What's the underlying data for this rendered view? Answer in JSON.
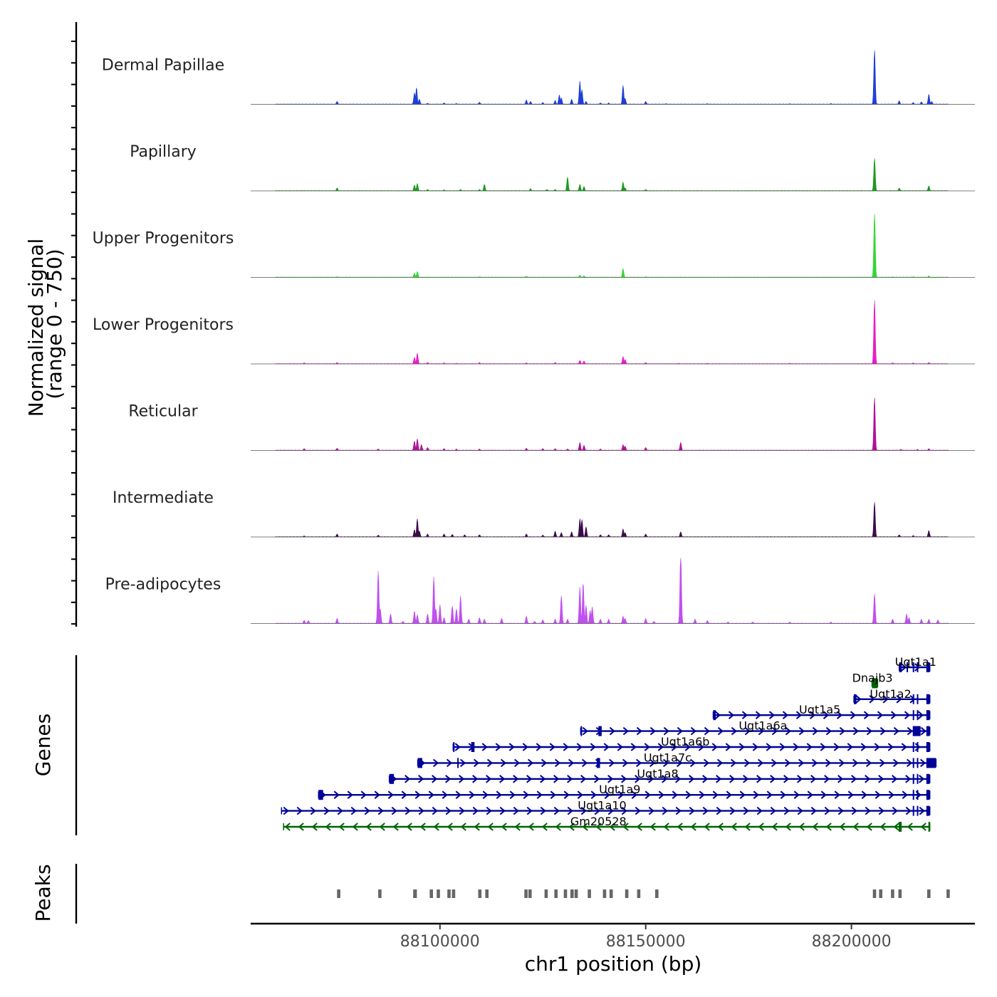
{
  "chart_data": {
    "type": "area",
    "title": "",
    "chromosome": "chr1",
    "xlabel": "chr1 position (bp)",
    "ylabel_line1": "Normalized signal",
    "ylabel_line2": "(range 0 - 750)",
    "y_range": [
      0,
      750
    ],
    "xlim": [
      88054000,
      88230000
    ],
    "x_ticks": [
      88100000,
      88150000,
      88200000
    ],
    "x_tick_labels": [
      "88100000",
      "88150000",
      "88200000"
    ],
    "panel_labels": {
      "genes": "Genes",
      "peaks": "Peaks"
    },
    "tracks": [
      {
        "name": "Dermal Papillae",
        "color": "#1f3fd6",
        "peaks": [
          [
            88075000,
            40
          ],
          [
            88093800,
            160
          ],
          [
            88094300,
            230
          ],
          [
            88095000,
            70
          ],
          [
            88097000,
            15
          ],
          [
            88101000,
            20
          ],
          [
            88104000,
            12
          ],
          [
            88109600,
            30
          ],
          [
            88121000,
            60
          ],
          [
            88122000,
            40
          ],
          [
            88125000,
            25
          ],
          [
            88128000,
            55
          ],
          [
            88129000,
            130
          ],
          [
            88129500,
            90
          ],
          [
            88132000,
            70
          ],
          [
            88134000,
            320
          ],
          [
            88134500,
            200
          ],
          [
            88135500,
            40
          ],
          [
            88139000,
            20
          ],
          [
            88141000,
            20
          ],
          [
            88144500,
            260
          ],
          [
            88145000,
            80
          ],
          [
            88150000,
            40
          ],
          [
            88155000,
            10
          ],
          [
            88165000,
            10
          ],
          [
            88185000,
            10
          ],
          [
            88195000,
            12
          ],
          [
            88205600,
            750
          ],
          [
            88211600,
            50
          ],
          [
            88215000,
            25
          ],
          [
            88217000,
            35
          ],
          [
            88218800,
            140
          ],
          [
            88219500,
            40
          ]
        ]
      },
      {
        "name": "Papillary",
        "color": "#1a9a1a",
        "peaks": [
          [
            88075000,
            40
          ],
          [
            88093800,
            80
          ],
          [
            88094500,
            100
          ],
          [
            88097000,
            20
          ],
          [
            88101000,
            15
          ],
          [
            88105000,
            20
          ],
          [
            88109600,
            20
          ],
          [
            88110800,
            90
          ],
          [
            88122000,
            30
          ],
          [
            88126000,
            20
          ],
          [
            88128000,
            20
          ],
          [
            88131000,
            190
          ],
          [
            88134000,
            90
          ],
          [
            88135000,
            60
          ],
          [
            88144500,
            120
          ],
          [
            88145000,
            40
          ],
          [
            88150000,
            20
          ],
          [
            88205600,
            450
          ],
          [
            88211600,
            40
          ],
          [
            88218800,
            70
          ]
        ]
      },
      {
        "name": "Upper Progenitors",
        "color": "#33d633",
        "peaks": [
          [
            88075000,
            10
          ],
          [
            88093800,
            60
          ],
          [
            88094500,
            80
          ],
          [
            88109600,
            10
          ],
          [
            88121000,
            15
          ],
          [
            88134000,
            30
          ],
          [
            88135000,
            20
          ],
          [
            88144500,
            120
          ],
          [
            88150000,
            10
          ],
          [
            88205600,
            880
          ],
          [
            88210000,
            10
          ],
          [
            88215000,
            10
          ],
          [
            88218800,
            20
          ]
        ]
      },
      {
        "name": "Lower Progenitors",
        "color": "#e61ec7",
        "peaks": [
          [
            88067000,
            15
          ],
          [
            88075000,
            20
          ],
          [
            88093800,
            90
          ],
          [
            88094500,
            150
          ],
          [
            88097000,
            20
          ],
          [
            88101000,
            15
          ],
          [
            88104000,
            10
          ],
          [
            88109600,
            20
          ],
          [
            88121000,
            15
          ],
          [
            88128000,
            20
          ],
          [
            88134000,
            50
          ],
          [
            88135000,
            40
          ],
          [
            88144500,
            100
          ],
          [
            88145000,
            60
          ],
          [
            88150000,
            20
          ],
          [
            88158000,
            10
          ],
          [
            88165000,
            10
          ],
          [
            88185000,
            10
          ],
          [
            88205600,
            880
          ],
          [
            88210000,
            15
          ],
          [
            88215000,
            15
          ],
          [
            88218800,
            20
          ]
        ]
      },
      {
        "name": "Reticular",
        "color": "#b0109b",
        "peaks": [
          [
            88067000,
            25
          ],
          [
            88075000,
            30
          ],
          [
            88085000,
            20
          ],
          [
            88093800,
            130
          ],
          [
            88094500,
            160
          ],
          [
            88095500,
            80
          ],
          [
            88097000,
            40
          ],
          [
            88101000,
            25
          ],
          [
            88104000,
            20
          ],
          [
            88109600,
            20
          ],
          [
            88121000,
            30
          ],
          [
            88125000,
            25
          ],
          [
            88128000,
            25
          ],
          [
            88131000,
            20
          ],
          [
            88134000,
            110
          ],
          [
            88135000,
            70
          ],
          [
            88139000,
            20
          ],
          [
            88144500,
            80
          ],
          [
            88145000,
            60
          ],
          [
            88150000,
            40
          ],
          [
            88158500,
            110
          ],
          [
            88205600,
            730
          ],
          [
            88212000,
            15
          ],
          [
            88216000,
            15
          ],
          [
            88218800,
            25
          ]
        ]
      },
      {
        "name": "Intermediate",
        "color": "#3d0a4a",
        "peaks": [
          [
            88067000,
            15
          ],
          [
            88075000,
            40
          ],
          [
            88085000,
            25
          ],
          [
            88093800,
            100
          ],
          [
            88094500,
            250
          ],
          [
            88095000,
            80
          ],
          [
            88097000,
            40
          ],
          [
            88101000,
            40
          ],
          [
            88103000,
            35
          ],
          [
            88106000,
            30
          ],
          [
            88109600,
            30
          ],
          [
            88121000,
            40
          ],
          [
            88125000,
            25
          ],
          [
            88128000,
            80
          ],
          [
            88129500,
            60
          ],
          [
            88132000,
            70
          ],
          [
            88134000,
            250
          ],
          [
            88134500,
            240
          ],
          [
            88135500,
            140
          ],
          [
            88139000,
            30
          ],
          [
            88141000,
            30
          ],
          [
            88144500,
            110
          ],
          [
            88145000,
            60
          ],
          [
            88150000,
            40
          ],
          [
            88158500,
            70
          ],
          [
            88205600,
            480
          ],
          [
            88211600,
            30
          ],
          [
            88215000,
            20
          ],
          [
            88218800,
            90
          ]
        ]
      },
      {
        "name": "Pre-adipocytes",
        "color": "#c04ff0",
        "peaks": [
          [
            88067000,
            45
          ],
          [
            88068000,
            40
          ],
          [
            88075000,
            70
          ],
          [
            88085000,
            720
          ],
          [
            88085500,
            200
          ],
          [
            88088000,
            130
          ],
          [
            88091000,
            30
          ],
          [
            88093800,
            170
          ],
          [
            88094500,
            120
          ],
          [
            88097000,
            130
          ],
          [
            88098500,
            640
          ],
          [
            88099000,
            200
          ],
          [
            88100000,
            260
          ],
          [
            88101000,
            80
          ],
          [
            88103000,
            240
          ],
          [
            88104000,
            200
          ],
          [
            88105000,
            380
          ],
          [
            88107000,
            60
          ],
          [
            88109600,
            80
          ],
          [
            88110800,
            60
          ],
          [
            88115000,
            70
          ],
          [
            88121000,
            100
          ],
          [
            88123000,
            30
          ],
          [
            88125000,
            50
          ],
          [
            88128000,
            60
          ],
          [
            88129500,
            380
          ],
          [
            88131000,
            60
          ],
          [
            88134000,
            500
          ],
          [
            88134800,
            560
          ],
          [
            88135500,
            250
          ],
          [
            88136500,
            180
          ],
          [
            88137000,
            230
          ],
          [
            88139000,
            60
          ],
          [
            88141000,
            60
          ],
          [
            88144500,
            100
          ],
          [
            88145000,
            70
          ],
          [
            88150000,
            70
          ],
          [
            88152000,
            30
          ],
          [
            88158500,
            1000
          ],
          [
            88162000,
            60
          ],
          [
            88165000,
            40
          ],
          [
            88170000,
            20
          ],
          [
            88176000,
            20
          ],
          [
            88185000,
            20
          ],
          [
            88195000,
            20
          ],
          [
            88205600,
            410
          ],
          [
            88210000,
            60
          ],
          [
            88213400,
            130
          ],
          [
            88214000,
            80
          ],
          [
            88217000,
            60
          ],
          [
            88218800,
            60
          ],
          [
            88221000,
            50
          ]
        ]
      }
    ],
    "genes": [
      {
        "name": "Ugt1a1",
        "start": 88211600,
        "end": 88219000,
        "strand": "+",
        "color": "#000099",
        "exons": [
          [
            88211600,
            88212200
          ],
          [
            88213400,
            88213700
          ],
          [
            88214900,
            88215200
          ],
          [
            88215900,
            88216200
          ],
          [
            88218200,
            88219000
          ]
        ],
        "label_pos": 88215600
      },
      {
        "name": "Dnajb3",
        "start": 88205000,
        "end": 88206300,
        "strand": "-",
        "color": "#006400",
        "exons": [
          [
            88205000,
            88206300
          ]
        ],
        "label_pos": 88205100
      },
      {
        "name": "Ugt1a2",
        "start": 88200600,
        "end": 88219000,
        "strand": "+",
        "color": "#000099",
        "exons": [
          [
            88200600,
            88201200
          ],
          [
            88214900,
            88215200
          ],
          [
            88215900,
            88216200
          ],
          [
            88218200,
            88219000
          ]
        ],
        "label_pos": 88209500
      },
      {
        "name": "Ugt1a5",
        "start": 88166400,
        "end": 88219000,
        "strand": "+",
        "color": "#000099",
        "exons": [
          [
            88166400,
            88167000
          ],
          [
            88214900,
            88215200
          ],
          [
            88215900,
            88216200
          ],
          [
            88218200,
            88219000
          ]
        ],
        "label_pos": 88192300
      },
      {
        "name": "Ugt1a6a",
        "start": 88134200,
        "end": 88219000,
        "strand": "+",
        "color": "#000099",
        "exons": [
          [
            88134200,
            88134500
          ],
          [
            88138500,
            88139300
          ],
          [
            88214900,
            88216800
          ],
          [
            88218200,
            88219000
          ]
        ],
        "label_pos": 88178500
      },
      {
        "name": "Ugt1a6b",
        "start": 88103200,
        "end": 88219000,
        "strand": "+",
        "color": "#000099",
        "exons": [
          [
            88103200,
            88103500
          ],
          [
            88107600,
            88108400
          ],
          [
            88214900,
            88215200
          ],
          [
            88215900,
            88216200
          ],
          [
            88218200,
            88219000
          ]
        ],
        "label_pos": 88159600
      },
      {
        "name": "Ugt1a7c",
        "start": 88094600,
        "end": 88220500,
        "strand": "+",
        "color": "#000099",
        "exons": [
          [
            88094600,
            88095700
          ],
          [
            88104200,
            88104500
          ],
          [
            88138100,
            88138900
          ],
          [
            88214900,
            88215200
          ],
          [
            88215900,
            88216200
          ],
          [
            88218200,
            88220500
          ]
        ],
        "label_pos": 88155300
      },
      {
        "name": "Ugt1a8",
        "start": 88087700,
        "end": 88219000,
        "strand": "+",
        "color": "#000099",
        "exons": [
          [
            88087700,
            88088800
          ],
          [
            88214900,
            88215200
          ],
          [
            88215900,
            88216200
          ],
          [
            88218200,
            88219000
          ]
        ],
        "label_pos": 88152900
      },
      {
        "name": "Ugt1a9",
        "start": 88070500,
        "end": 88219000,
        "strand": "+",
        "color": "#000099",
        "exons": [
          [
            88070500,
            88071600
          ],
          [
            88214900,
            88215200
          ],
          [
            88215900,
            88216200
          ],
          [
            88218200,
            88219000
          ]
        ],
        "label_pos": 88143700
      },
      {
        "name": "Ugt1a10",
        "start": 88061500,
        "end": 88219000,
        "strand": "+",
        "color": "#000099",
        "exons": [
          [
            88214900,
            88215200
          ],
          [
            88215900,
            88216200
          ],
          [
            88218200,
            88219000
          ]
        ],
        "label_pos": 88139400
      },
      {
        "name": "Gm20528",
        "start": 88062000,
        "end": 88219000,
        "strand": "-",
        "color": "#006400",
        "exons": [
          [
            88211500,
            88212200
          ],
          [
            88218700,
            88219000
          ]
        ],
        "label_pos": 88138500
      }
    ],
    "peaks_regions": [
      [
        88075000,
        88075800
      ],
      [
        88085000,
        88085800
      ],
      [
        88093500,
        88094400
      ],
      [
        88097500,
        88098300
      ],
      [
        88099200,
        88100000
      ],
      [
        88101800,
        88102600
      ],
      [
        88102900,
        88103700
      ],
      [
        88109300,
        88110100
      ],
      [
        88111000,
        88111800
      ],
      [
        88120500,
        88121300
      ],
      [
        88121500,
        88122300
      ],
      [
        88125400,
        88126200
      ],
      [
        88127800,
        88128600
      ],
      [
        88130100,
        88130900
      ],
      [
        88131700,
        88132500
      ],
      [
        88132700,
        88133500
      ],
      [
        88135900,
        88136700
      ],
      [
        88139600,
        88140400
      ],
      [
        88141200,
        88142000
      ],
      [
        88145000,
        88145800
      ],
      [
        88147900,
        88148700
      ],
      [
        88152300,
        88153100
      ],
      [
        88205200,
        88206000
      ],
      [
        88206700,
        88207500
      ],
      [
        88209600,
        88210400
      ],
      [
        88211400,
        88212200
      ],
      [
        88218400,
        88219200
      ],
      [
        88223100,
        88223900
      ]
    ]
  }
}
